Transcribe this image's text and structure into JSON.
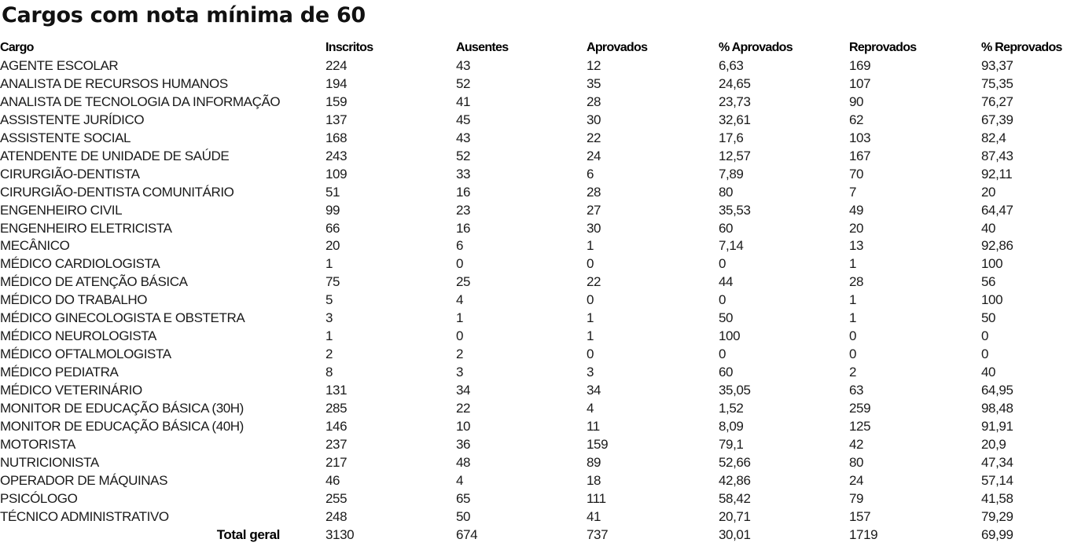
{
  "title": "Cargos com nota mínima de 60",
  "table": {
    "headers": [
      "Cargo",
      "Inscritos",
      "Ausentes",
      "Aprovados",
      "% Aprovados",
      "Reprovados",
      "% Reprovados"
    ],
    "rows": [
      [
        "AGENTE ESCOLAR",
        "224",
        "43",
        "12",
        "6,63",
        "169",
        "93,37"
      ],
      [
        "ANALISTA DE RECURSOS HUMANOS",
        "194",
        "52",
        "35",
        "24,65",
        "107",
        "75,35"
      ],
      [
        "ANALISTA DE TECNOLOGIA DA INFORMAÇÃO",
        "159",
        "41",
        "28",
        "23,73",
        "90",
        "76,27"
      ],
      [
        "ASSISTENTE JURÍDICO",
        "137",
        "45",
        "30",
        "32,61",
        "62",
        "67,39"
      ],
      [
        "ASSISTENTE SOCIAL",
        "168",
        "43",
        "22",
        "17,6",
        "103",
        "82,4"
      ],
      [
        "ATENDENTE DE UNIDADE DE SAÚDE",
        "243",
        "52",
        "24",
        "12,57",
        "167",
        "87,43"
      ],
      [
        "CIRURGIÃO-DENTISTA",
        "109",
        "33",
        "6",
        "7,89",
        "70",
        "92,11"
      ],
      [
        "CIRURGIÃO-DENTISTA COMUNITÁRIO",
        "51",
        "16",
        "28",
        "80",
        "7",
        "20"
      ],
      [
        "ENGENHEIRO CIVIL",
        "99",
        "23",
        "27",
        "35,53",
        "49",
        "64,47"
      ],
      [
        "ENGENHEIRO ELETRICISTA",
        "66",
        "16",
        "30",
        "60",
        "20",
        "40"
      ],
      [
        "MECÂNICO",
        "20",
        "6",
        "1",
        "7,14",
        "13",
        "92,86"
      ],
      [
        "MÉDICO CARDIOLOGISTA",
        "1",
        "0",
        "0",
        "0",
        "1",
        "100"
      ],
      [
        "MÉDICO DE ATENÇÃO BÁSICA",
        "75",
        "25",
        "22",
        "44",
        "28",
        "56"
      ],
      [
        "MÉDICO DO TRABALHO",
        "5",
        "4",
        "0",
        "0",
        "1",
        "100"
      ],
      [
        "MÉDICO GINECOLOGISTA E OBSTETRA",
        "3",
        "1",
        "1",
        "50",
        "1",
        "50"
      ],
      [
        "MÉDICO NEUROLOGISTA",
        "1",
        "0",
        "1",
        "100",
        "0",
        "0"
      ],
      [
        "MÉDICO OFTALMOLOGISTA",
        "2",
        "2",
        "0",
        "0",
        "0",
        "0"
      ],
      [
        "MÉDICO PEDIATRA",
        "8",
        "3",
        "3",
        "60",
        "2",
        "40"
      ],
      [
        "MÉDICO VETERINÁRIO",
        "131",
        "34",
        "34",
        "35,05",
        "63",
        "64,95"
      ],
      [
        "MONITOR DE EDUCAÇÃO BÁSICA (30H)",
        "285",
        "22",
        "4",
        "1,52",
        "259",
        "98,48"
      ],
      [
        "MONITOR DE EDUCAÇÃO BÁSICA (40H)",
        "146",
        "10",
        "11",
        "8,09",
        "125",
        "91,91"
      ],
      [
        "MOTORISTA",
        "237",
        "36",
        "159",
        "79,1",
        "42",
        "20,9"
      ],
      [
        "NUTRICIONISTA",
        "217",
        "48",
        "89",
        "52,66",
        "80",
        "47,34"
      ],
      [
        "OPERADOR DE MÁQUINAS",
        "46",
        "4",
        "18",
        "42,86",
        "24",
        "57,14"
      ],
      [
        "PSICÓLOGO",
        "255",
        "65",
        "111",
        "58,42",
        "79",
        "41,58"
      ],
      [
        "TÉCNICO ADMINISTRATIVO",
        "248",
        "50",
        "41",
        "20,71",
        "157",
        "79,29"
      ]
    ],
    "total": [
      "Total geral",
      "3130",
      "674",
      "737",
      "30,01",
      "1719",
      "69,99"
    ]
  }
}
